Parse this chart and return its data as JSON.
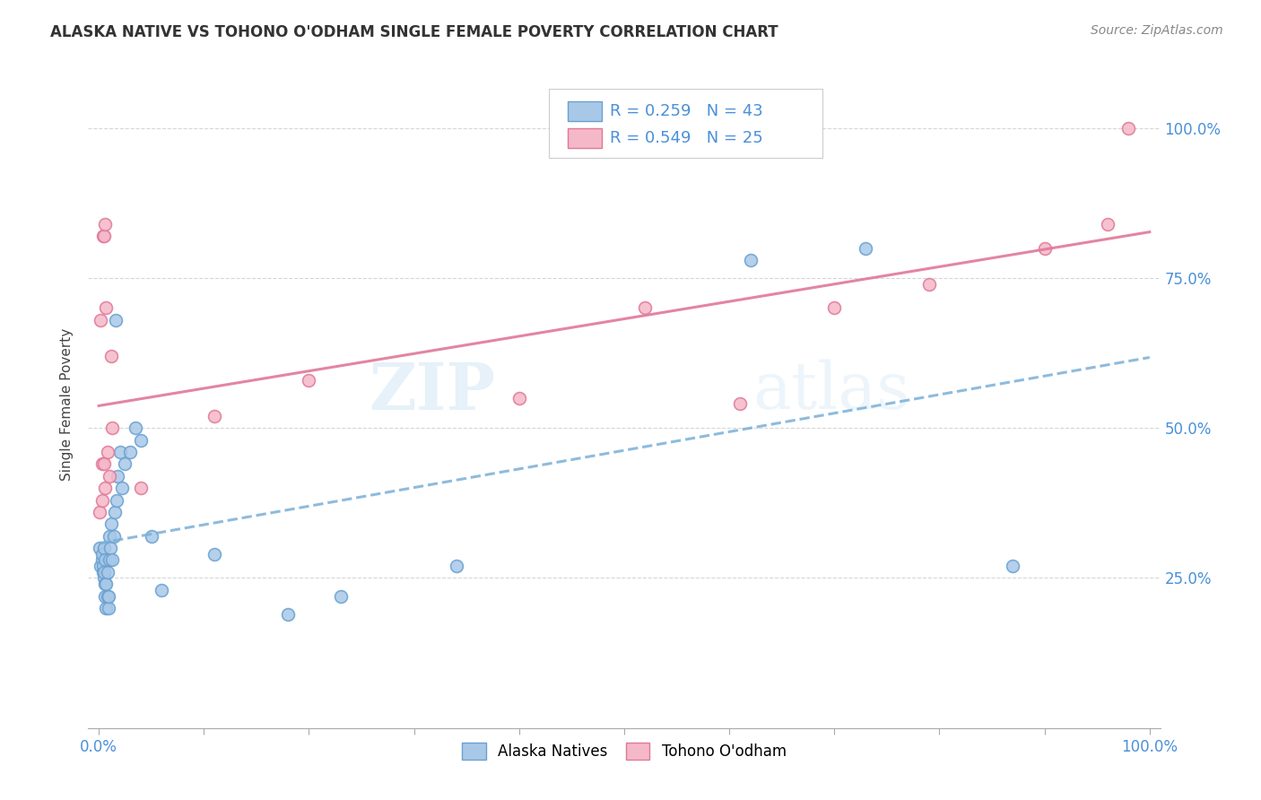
{
  "title": "ALASKA NATIVE VS TOHONO O'ODHAM SINGLE FEMALE POVERTY CORRELATION CHART",
  "source": "Source: ZipAtlas.com",
  "ylabel": "Single Female Poverty",
  "ytick_labels": [
    "25.0%",
    "50.0%",
    "75.0%",
    "100.0%"
  ],
  "ytick_values": [
    0.25,
    0.5,
    0.75,
    1.0
  ],
  "legend_label1": "Alaska Natives",
  "legend_label2": "Tohono O'odham",
  "legend_r1": "R = 0.259",
  "legend_n1": "N = 43",
  "legend_r2": "R = 0.549",
  "legend_n2": "N = 25",
  "color_blue_fill": "#a8c8e8",
  "color_blue_edge": "#6aa0d0",
  "color_pink_fill": "#f5b8c8",
  "color_pink_edge": "#e07898",
  "color_line_blue": "#7ab0d8",
  "color_line_pink": "#e07898",
  "watermark_zip": "ZIP",
  "watermark_atlas": "atlas",
  "alaska_x": [
    0.001,
    0.002,
    0.003,
    0.003,
    0.004,
    0.004,
    0.005,
    0.005,
    0.005,
    0.006,
    0.006,
    0.006,
    0.007,
    0.007,
    0.008,
    0.008,
    0.009,
    0.009,
    0.01,
    0.01,
    0.011,
    0.012,
    0.013,
    0.014,
    0.015,
    0.016,
    0.017,
    0.018,
    0.02,
    0.022,
    0.025,
    0.03,
    0.035,
    0.04,
    0.05,
    0.06,
    0.11,
    0.18,
    0.23,
    0.34,
    0.62,
    0.73,
    0.87
  ],
  "alaska_y": [
    0.3,
    0.27,
    0.28,
    0.29,
    0.26,
    0.27,
    0.25,
    0.26,
    0.3,
    0.22,
    0.24,
    0.28,
    0.2,
    0.24,
    0.22,
    0.26,
    0.2,
    0.22,
    0.28,
    0.32,
    0.3,
    0.34,
    0.28,
    0.32,
    0.36,
    0.68,
    0.38,
    0.42,
    0.46,
    0.4,
    0.44,
    0.46,
    0.5,
    0.48,
    0.32,
    0.23,
    0.29,
    0.19,
    0.22,
    0.27,
    0.78,
    0.8,
    0.27
  ],
  "tohono_x": [
    0.001,
    0.002,
    0.003,
    0.003,
    0.004,
    0.005,
    0.005,
    0.006,
    0.006,
    0.007,
    0.008,
    0.01,
    0.012,
    0.013,
    0.04,
    0.11,
    0.2,
    0.4,
    0.52,
    0.61,
    0.7,
    0.79,
    0.9,
    0.96,
    0.98
  ],
  "tohono_y": [
    0.36,
    0.68,
    0.38,
    0.44,
    0.82,
    0.82,
    0.44,
    0.84,
    0.4,
    0.7,
    0.46,
    0.42,
    0.62,
    0.5,
    0.4,
    0.52,
    0.58,
    0.55,
    0.7,
    0.54,
    0.7,
    0.74,
    0.8,
    0.84,
    1.0
  ]
}
